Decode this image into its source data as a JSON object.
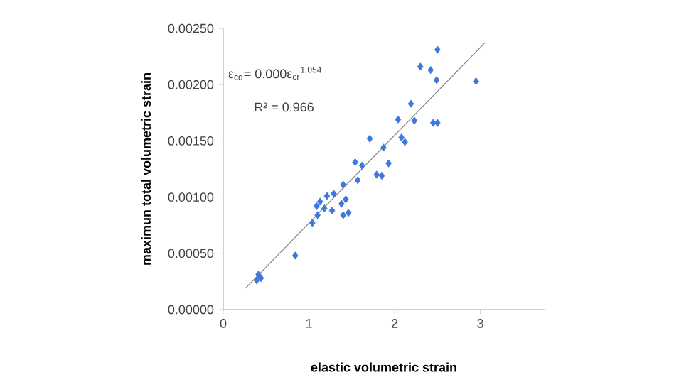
{
  "chart_data": {
    "type": "scatter",
    "xlabel": "elastic volumetric strain",
    "ylabel": "maximun total volumetric strain",
    "annotations": [
      "ε$_{cd}$= 0.000ε$_{cr}$$^{1.054}$",
      "R² = 0.966"
    ],
    "marker": "diamond",
    "grid": false,
    "xlim": [
      0,
      3.75
    ],
    "xticks": [
      0,
      1,
      2,
      3
    ],
    "ylim": [
      0,
      0.0025
    ],
    "yticks": [
      {
        "value": 0,
        "label": "0.00000"
      },
      {
        "value": 0.0005,
        "label": "0.00050"
      },
      {
        "value": 0.001,
        "label": "0.00100"
      },
      {
        "value": 0.0015,
        "label": "0.00150"
      },
      {
        "value": 0.002,
        "label": "0.00200"
      },
      {
        "value": 0.0025,
        "label": "0.00250"
      }
    ],
    "series": [
      {
        "color": "#3f78dc",
        "x": [
          2.5,
          2.3,
          2.42,
          2.49,
          2.95,
          2.19,
          2.04,
          2.23,
          2.45,
          2.5,
          1.71,
          2.08,
          2.12,
          1.87,
          1.93,
          1.54,
          1.62,
          1.79,
          1.85,
          1.57,
          1.4,
          1.09,
          1.13,
          1.21,
          1.29,
          1.18,
          1.27,
          1.38,
          1.43,
          1.4,
          1.46,
          1.1,
          1.04,
          0.84,
          0.41,
          0.44,
          0.39
        ],
        "values": [
          0.00231,
          0.00216,
          0.00213,
          0.00204,
          0.00203,
          0.00183,
          0.00169,
          0.00168,
          0.00166,
          0.00166,
          0.00152,
          0.00153,
          0.00149,
          0.00144,
          0.0013,
          0.00131,
          0.00128,
          0.0012,
          0.00119,
          0.00115,
          0.00111,
          0.00092,
          0.00096,
          0.00101,
          0.00103,
          0.0009,
          0.00088,
          0.00094,
          0.00098,
          0.00084,
          0.00086,
          0.00084,
          0.00077,
          0.00048,
          0.00031,
          0.00028,
          0.00026
        ]
      },
      {
        "type": "line",
        "color": "#808080",
        "marker": "none",
        "x": [
          0.26,
          3.05
        ],
        "values": [
          0.00019,
          0.00237
        ]
      }
    ]
  }
}
